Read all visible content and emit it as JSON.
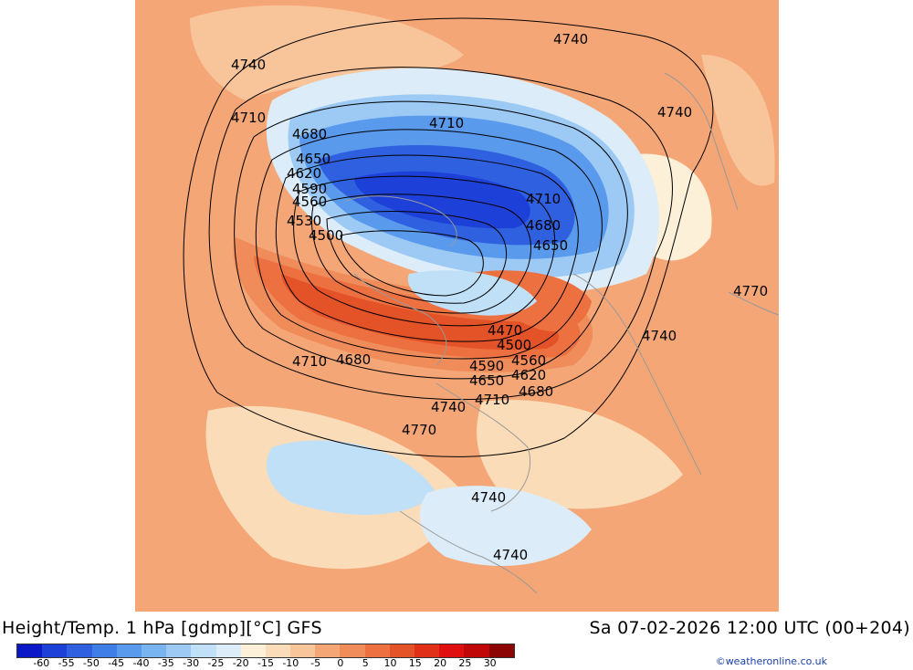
{
  "map": {
    "contour_labels": [
      {
        "text": "4740",
        "key": "outer-nw"
      },
      {
        "text": "4740",
        "key": "outer-n"
      },
      {
        "text": "4740",
        "key": "outer-ne"
      },
      {
        "text": "4710",
        "key": "nw"
      },
      {
        "text": "4710",
        "key": "n"
      },
      {
        "text": "4680",
        "key": "a"
      },
      {
        "text": "4650",
        "key": "b"
      },
      {
        "text": "4620",
        "key": "c"
      },
      {
        "text": "4590",
        "key": "d"
      },
      {
        "text": "4560",
        "key": "e"
      },
      {
        "text": "4530",
        "key": "f"
      },
      {
        "text": "4500",
        "key": "g"
      },
      {
        "text": "4710",
        "key": "e1"
      },
      {
        "text": "4680",
        "key": "e2"
      },
      {
        "text": "4650",
        "key": "e3"
      },
      {
        "text": "4770",
        "key": "far-e"
      },
      {
        "text": "4740",
        "key": "e4"
      },
      {
        "text": "4470",
        "key": "s1"
      },
      {
        "text": "4500",
        "key": "s2"
      },
      {
        "text": "4560",
        "key": "s3"
      },
      {
        "text": "4590",
        "key": "s4"
      },
      {
        "text": "4620",
        "key": "s5"
      },
      {
        "text": "4650",
        "key": "s6"
      },
      {
        "text": "4680",
        "key": "s7"
      },
      {
        "text": "4710",
        "key": "s8"
      },
      {
        "text": "4740",
        "key": "s9"
      },
      {
        "text": "4710",
        "key": "sw1"
      },
      {
        "text": "4680",
        "key": "sw2"
      },
      {
        "text": "4770",
        "key": "s10"
      },
      {
        "text": "4740",
        "key": "s11"
      },
      {
        "text": "4740",
        "key": "s12"
      }
    ]
  },
  "footer": {
    "title": "Height/Temp. 1 hPa [gdmp][°C] GFS",
    "datetime": "Sa 07-02-2026 12:00 UTC (00+204)",
    "credit": "©weatheronline.co.uk"
  },
  "legend": {
    "colors": [
      "#0a18c8",
      "#1d40d8",
      "#2e60e0",
      "#3f7ee6",
      "#5a9aec",
      "#78b4f0",
      "#9ccaf4",
      "#c0e0f8",
      "#dcecf8",
      "#fdf0d8",
      "#fbdcb8",
      "#f8c49a",
      "#f4a676",
      "#f08c5a",
      "#ec7040",
      "#e45228",
      "#e03018",
      "#e01010",
      "#c00808",
      "#8c0404"
    ],
    "labels": [
      "-60",
      "-55",
      "-50",
      "-45",
      "-40",
      "-35",
      "-30",
      "-25",
      "-20",
      "-15",
      "-10",
      "-5",
      "0",
      "5",
      "10",
      "15",
      "20",
      "25",
      "30"
    ]
  }
}
